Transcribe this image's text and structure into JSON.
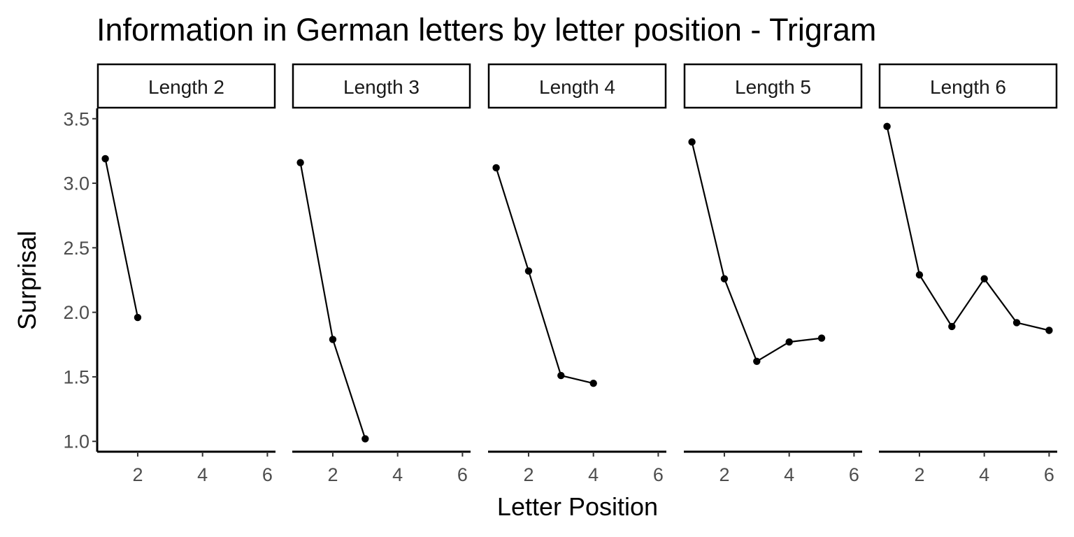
{
  "chart_data": {
    "type": "line",
    "title": "Information in German letters by letter position - Trigram",
    "xlabel": "Letter Position",
    "ylabel": "Surprisal",
    "xlim": [
      0.75,
      6.25
    ],
    "ylim": [
      0.92,
      3.58
    ],
    "x_ticks": [
      2,
      4,
      6
    ],
    "y_ticks": [
      1.0,
      1.5,
      2.0,
      2.5,
      3.0,
      3.5
    ],
    "y_tick_labels": [
      "1.0",
      "1.5",
      "2.0",
      "2.5",
      "3.0",
      "3.5"
    ],
    "grid": false,
    "facets": [
      {
        "label": "Length 2",
        "x": [
          1,
          2
        ],
        "y": [
          3.19,
          1.96
        ]
      },
      {
        "label": "Length 3",
        "x": [
          1,
          2,
          3
        ],
        "y": [
          3.16,
          1.79,
          1.02
        ]
      },
      {
        "label": "Length 4",
        "x": [
          1,
          2,
          3,
          4
        ],
        "y": [
          3.12,
          2.32,
          1.51,
          1.45
        ]
      },
      {
        "label": "Length 5",
        "x": [
          1,
          2,
          3,
          4,
          5
        ],
        "y": [
          3.32,
          2.26,
          1.62,
          1.77,
          1.8
        ]
      },
      {
        "label": "Length 6",
        "x": [
          1,
          2,
          3,
          4,
          5,
          6
        ],
        "y": [
          3.44,
          2.29,
          1.89,
          2.26,
          1.92,
          1.86
        ]
      }
    ],
    "colors": {
      "line": "#000000",
      "point": "#000000",
      "tick_label": "#4d4d4d"
    }
  }
}
